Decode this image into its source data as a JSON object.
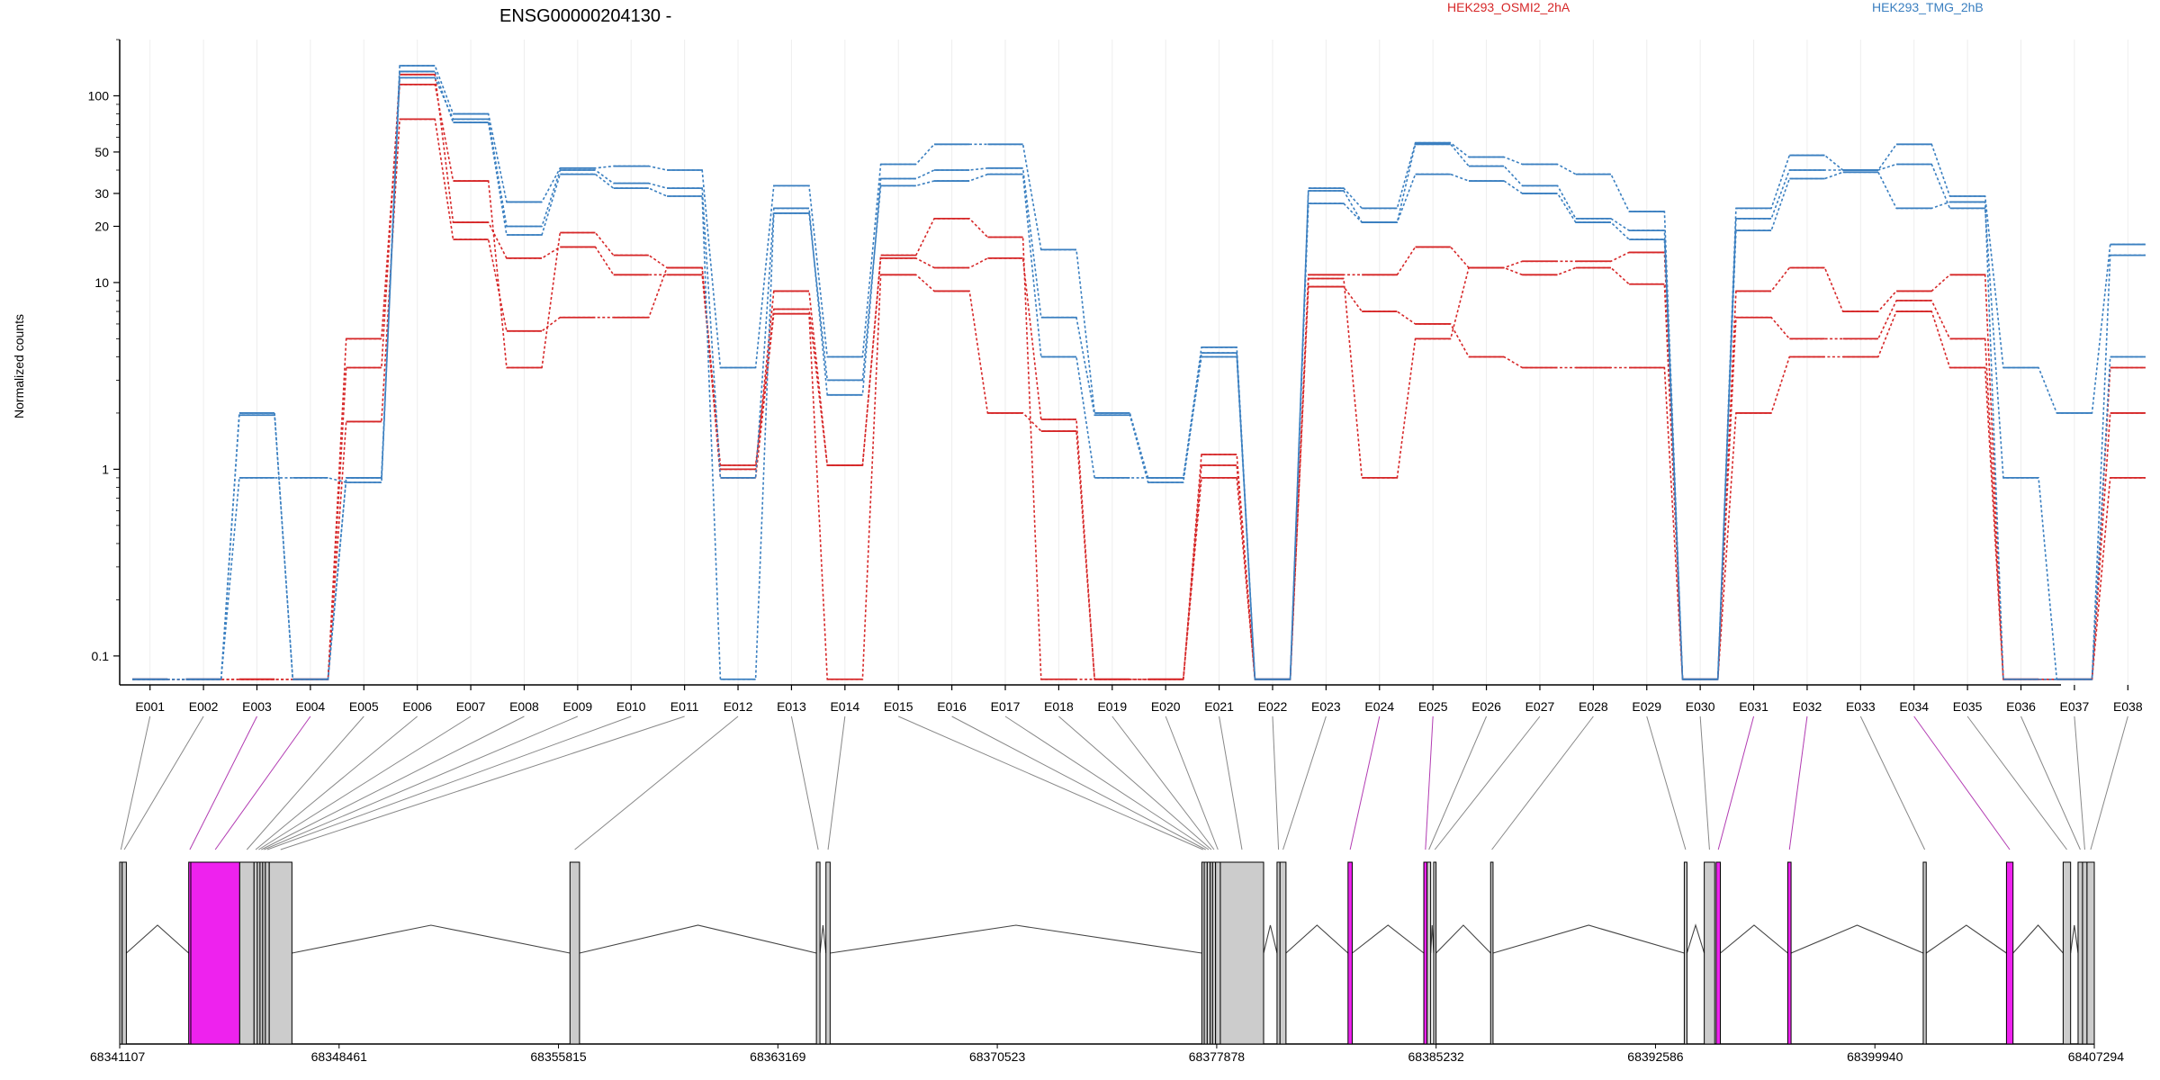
{
  "title": "ENSG00000204130 -",
  "legend": {
    "placement": "top",
    "items": [
      {
        "label": "HEK293_OSMI2_2hA",
        "color": "#d62728"
      },
      {
        "label": "HEK293_TMG_2hB",
        "color": "#3a7fc0"
      }
    ]
  },
  "colors": {
    "axis": "#000000",
    "grid": "#eeeeee",
    "connector": "#888888",
    "connector_highlight": "#b23cb2",
    "exon_fill": "#cccccc",
    "exon_highlight": "#ee22ee",
    "intron": "#444444"
  },
  "chart_data": {
    "type": "line",
    "title": "ENSG00000204130 -",
    "ylabel": "Normalized counts",
    "yscale": "log",
    "ylim": [
      0.07,
      200
    ],
    "yticks": [
      0.1,
      1,
      10,
      20,
      30,
      50,
      100
    ],
    "ytick_labels": [
      "0.1",
      "1",
      "10",
      "20",
      "30",
      "50",
      "100"
    ],
    "grid": "vertical-light",
    "categories": [
      "E001",
      "E002",
      "E003",
      "E004",
      "E005",
      "E006",
      "E007",
      "E008",
      "E009",
      "E010",
      "E011",
      "E012",
      "E013",
      "E014",
      "E015",
      "E016",
      "E017",
      "E018",
      "E019",
      "E020",
      "E021",
      "E022",
      "E023",
      "E024",
      "E025",
      "E026",
      "E027",
      "E028",
      "E029",
      "E030",
      "E031",
      "E032",
      "E033",
      "E034",
      "E035",
      "E036",
      "E037",
      "E038"
    ],
    "series": [
      {
        "group": "HEK293_OSMI2_2hA",
        "color": "#d62728",
        "values": [
          0.075,
          0.075,
          0.075,
          0.075,
          1.8,
          75,
          17,
          5.5,
          6.5,
          6.5,
          12,
          0.9,
          6.8,
          0.075,
          11,
          9,
          2,
          1.6,
          0.075,
          0.075,
          0.9,
          0.075,
          9.5,
          7,
          6,
          4,
          3.5,
          3.5,
          3.5,
          0.075,
          2,
          4,
          4,
          7,
          3.5,
          0.075,
          0.075,
          0.9
        ]
      },
      {
        "group": "HEK293_OSMI2_2hA",
        "color": "#d62728",
        "values": [
          0.075,
          0.075,
          0.075,
          0.075,
          3.5,
          130,
          21,
          13.5,
          15.5,
          11,
          11,
          1.0,
          9,
          1.05,
          13.5,
          12,
          13.5,
          1.85,
          0.075,
          0.075,
          1.05,
          0.075,
          11,
          11,
          15.5,
          12,
          11,
          12,
          9.8,
          0.075,
          6.5,
          5,
          5,
          8,
          5,
          0.075,
          0.075,
          2
        ]
      },
      {
        "group": "HEK293_OSMI2_2hA",
        "color": "#d62728",
        "values": [
          0.075,
          0.075,
          0.075,
          0.075,
          5.0,
          115,
          35,
          3.5,
          18.5,
          14,
          12,
          1.05,
          7.2,
          1.05,
          14,
          22,
          17.5,
          0.075,
          0.075,
          0.075,
          1.2,
          0.075,
          10.5,
          0.9,
          5,
          12,
          13,
          13,
          14.5,
          0.075,
          9,
          12,
          7,
          9,
          11,
          0.075,
          0.075,
          3.5
        ]
      },
      {
        "group": "HEK293_TMG_2hB",
        "color": "#3a7fc0",
        "values": [
          0.075,
          0.075,
          1.95,
          0.075,
          0.9,
          145,
          80,
          27,
          41,
          42,
          40,
          3.5,
          33,
          4,
          43,
          55,
          55,
          15,
          2,
          0.9,
          4.5,
          0.075,
          32,
          25,
          56,
          47,
          43,
          38,
          24,
          0.075,
          25,
          48,
          40,
          55,
          29,
          3.5,
          2,
          16
        ]
      },
      {
        "group": "HEK293_TMG_2hB",
        "color": "#3a7fc0",
        "values": [
          0.075,
          0.075,
          2.0,
          0.075,
          0.9,
          125,
          75,
          20,
          40,
          34,
          32,
          0.9,
          25,
          2.5,
          36,
          40,
          41,
          6.5,
          1.95,
          0.85,
          4.2,
          0.075,
          31,
          21,
          55,
          42,
          33,
          22,
          19,
          0.075,
          22,
          40,
          40,
          43,
          25,
          0.9,
          0.075,
          14
        ]
      },
      {
        "group": "HEK293_TMG_2hB",
        "color": "#3a7fc0",
        "values": [
          0.075,
          0.075,
          0.9,
          0.9,
          0.85,
          135,
          72,
          18,
          38,
          32,
          29,
          0.075,
          23.5,
          3,
          33,
          35,
          38,
          4,
          0.9,
          0.9,
          4,
          0.075,
          26.5,
          21,
          38,
          35,
          30,
          21,
          17,
          0.075,
          19,
          36,
          39,
          25,
          27,
          0.075,
          0.075,
          4
        ]
      }
    ],
    "gene_model": {
      "xlim": [
        68341107,
        68407294
      ],
      "xtick_labels": [
        "68341107",
        "68348461",
        "68355815",
        "68363169",
        "68370523",
        "68377878",
        "68385232",
        "68392586",
        "68399940",
        "68407294"
      ],
      "xticks": [
        68341107,
        68348461,
        68355815,
        68363169,
        68370523,
        68377878,
        68385232,
        68392586,
        68399940,
        68407294
      ],
      "exons": [
        {
          "id": "E001",
          "start": 68341107,
          "end": 68341190,
          "highlight": false
        },
        {
          "id": "E002",
          "start": 68341190,
          "end": 68341330,
          "highlight": false
        },
        {
          "id": "E003",
          "start": 68343420,
          "end": 68343490,
          "highlight": true
        },
        {
          "id": "E004",
          "start": 68343490,
          "end": 68345130,
          "highlight": true
        },
        {
          "id": "E005",
          "start": 68345130,
          "end": 68345610,
          "highlight": false
        },
        {
          "id": "E006",
          "start": 68345610,
          "end": 68345720,
          "highlight": false
        },
        {
          "id": "E007",
          "start": 68345720,
          "end": 68345810,
          "highlight": false
        },
        {
          "id": "E008",
          "start": 68345810,
          "end": 68345900,
          "highlight": false
        },
        {
          "id": "E009",
          "start": 68345900,
          "end": 68345990,
          "highlight": false
        },
        {
          "id": "E010",
          "start": 68345990,
          "end": 68346120,
          "highlight": false
        },
        {
          "id": "E011",
          "start": 68346120,
          "end": 68346880,
          "highlight": false
        },
        {
          "id": "E012",
          "start": 68356200,
          "end": 68356520,
          "highlight": false
        },
        {
          "id": "E013",
          "start": 68364460,
          "end": 68364580,
          "highlight": false
        },
        {
          "id": "E014",
          "start": 68364780,
          "end": 68364920,
          "highlight": false
        },
        {
          "id": "E015",
          "start": 68377380,
          "end": 68377460,
          "highlight": false
        },
        {
          "id": "E016",
          "start": 68377460,
          "end": 68377560,
          "highlight": false
        },
        {
          "id": "E017",
          "start": 68377560,
          "end": 68377660,
          "highlight": false
        },
        {
          "id": "E018",
          "start": 68377660,
          "end": 68377740,
          "highlight": false
        },
        {
          "id": "E019",
          "start": 68377740,
          "end": 68377840,
          "highlight": false
        },
        {
          "id": "E020",
          "start": 68377840,
          "end": 68378000,
          "highlight": false
        },
        {
          "id": "E021",
          "start": 68378000,
          "end": 68379450,
          "highlight": false
        },
        {
          "id": "E022",
          "start": 68379900,
          "end": 68380000,
          "highlight": false
        },
        {
          "id": "E023",
          "start": 68380000,
          "end": 68380200,
          "highlight": false
        },
        {
          "id": "E024",
          "start": 68382280,
          "end": 68382420,
          "highlight": true
        },
        {
          "id": "E025",
          "start": 68384820,
          "end": 68384930,
          "highlight": true
        },
        {
          "id": "E026",
          "start": 68384930,
          "end": 68385050,
          "highlight": false
        },
        {
          "id": "E027",
          "start": 68385150,
          "end": 68385230,
          "highlight": false
        },
        {
          "id": "E028",
          "start": 68387060,
          "end": 68387140,
          "highlight": false
        },
        {
          "id": "E029",
          "start": 68393550,
          "end": 68393640,
          "highlight": false
        },
        {
          "id": "E030",
          "start": 68394220,
          "end": 68394570,
          "highlight": false
        },
        {
          "id": "E031",
          "start": 68394620,
          "end": 68394760,
          "highlight": true
        },
        {
          "id": "E032",
          "start": 68397020,
          "end": 68397130,
          "highlight": true
        },
        {
          "id": "E033",
          "start": 68401560,
          "end": 68401660,
          "highlight": false
        },
        {
          "id": "E034",
          "start": 68404350,
          "end": 68404570,
          "highlight": true
        },
        {
          "id": "E035",
          "start": 68406250,
          "end": 68406500,
          "highlight": false
        },
        {
          "id": "E036",
          "start": 68406750,
          "end": 68406900,
          "highlight": false
        },
        {
          "id": "E037",
          "start": 68406900,
          "end": 68407050,
          "highlight": false
        },
        {
          "id": "E038",
          "start": 68407050,
          "end": 68407294,
          "highlight": false
        }
      ]
    }
  }
}
